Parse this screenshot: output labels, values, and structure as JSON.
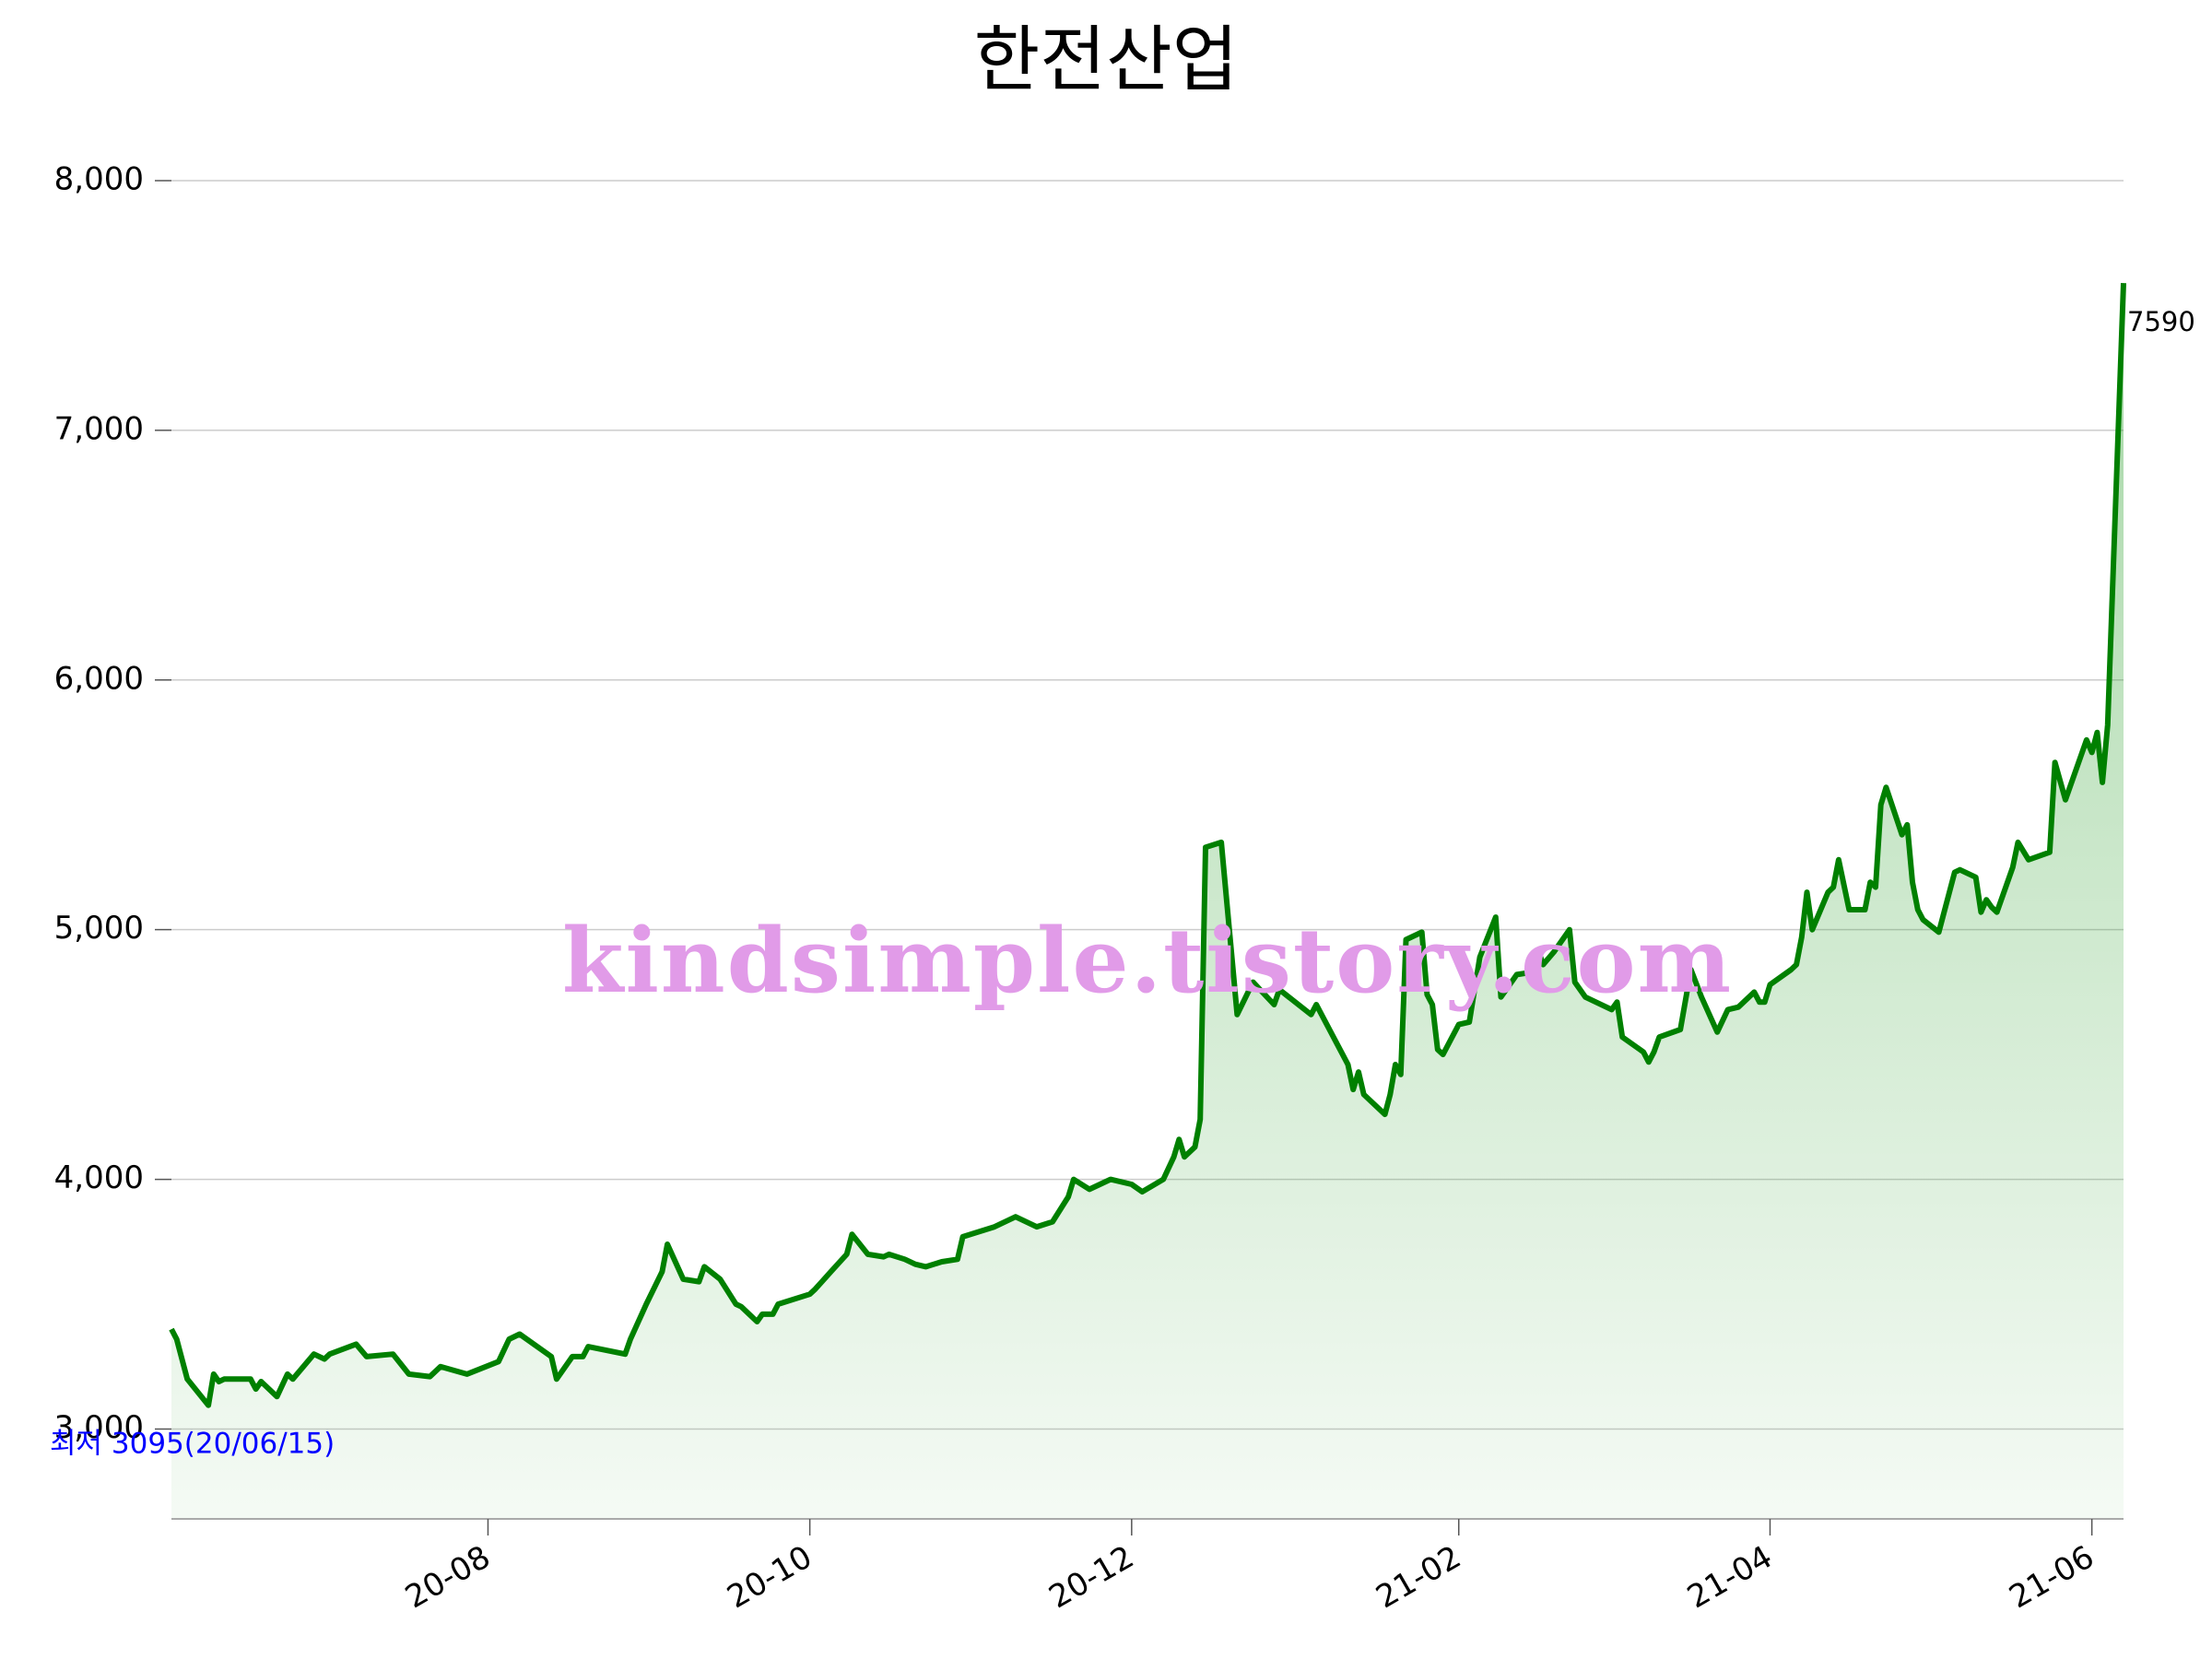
{
  "chart_data": {
    "type": "line",
    "title": "한전산업",
    "x": [
      "20-06-02",
      "20-06-03",
      "20-06-05",
      "20-06-09",
      "20-06-10",
      "20-06-11",
      "20-06-12",
      "20-06-17",
      "20-06-18",
      "20-06-19",
      "20-06-22",
      "20-06-24",
      "20-06-25",
      "20-06-29",
      "20-07-01",
      "20-07-02",
      "20-07-07",
      "20-07-09",
      "20-07-14",
      "20-07-17",
      "20-07-21",
      "20-07-23",
      "20-07-28",
      "20-08-03",
      "20-08-05",
      "20-08-07",
      "20-08-13",
      "20-08-14",
      "20-08-17",
      "20-08-19",
      "20-08-20",
      "20-08-27",
      "20-08-28",
      "20-08-31",
      "20-09-03",
      "20-09-04",
      "20-09-07",
      "20-09-10",
      "20-09-11",
      "20-09-14",
      "20-09-17",
      "20-09-18",
      "20-09-21",
      "20-09-22",
      "20-09-24",
      "20-09-25",
      "20-10-01",
      "20-10-02",
      "20-10-05",
      "20-10-08",
      "20-10-09",
      "20-10-12",
      "20-10-15",
      "20-10-16",
      "20-10-19",
      "20-10-21",
      "20-10-23",
      "20-10-26",
      "20-10-29",
      "20-10-30",
      "20-11-02",
      "20-11-05",
      "20-11-09",
      "20-11-13",
      "20-11-16",
      "20-11-19",
      "20-11-20",
      "20-11-23",
      "20-11-27",
      "20-12-01",
      "20-12-03",
      "20-12-07",
      "20-12-09",
      "20-12-10",
      "20-12-11",
      "20-12-13",
      "20-12-14",
      "20-12-15",
      "20-12-18",
      "20-12-21",
      "20-12-24",
      "20-12-28",
      "20-12-29",
      "21-01-04",
      "21-01-05",
      "21-01-07",
      "21-01-11",
      "21-01-12",
      "21-01-13",
      "21-01-14",
      "21-01-18",
      "21-01-19",
      "21-01-20",
      "21-01-21",
      "21-01-22",
      "21-01-25",
      "21-01-26",
      "21-01-27",
      "21-01-28",
      "21-01-29",
      "21-02-01",
      "21-02-03",
      "21-02-05",
      "21-02-08",
      "21-02-09",
      "21-02-12",
      "21-02-15",
      "21-02-16",
      "21-02-17",
      "21-02-19",
      "21-02-22",
      "21-02-23",
      "21-02-25",
      "21-03-02",
      "21-03-03",
      "21-03-04",
      "21-03-08",
      "21-03-09",
      "21-03-10",
      "21-03-11",
      "21-03-15",
      "21-03-17",
      "21-03-19",
      "21-03-22",
      "21-03-24",
      "21-03-26",
      "21-03-29",
      "21-03-30",
      "21-03-31",
      "21-04-01",
      "21-04-05",
      "21-04-06",
      "21-04-07",
      "21-04-08",
      "21-04-09",
      "21-04-12",
      "21-04-13",
      "21-04-14",
      "21-04-16",
      "21-04-19",
      "21-04-20",
      "21-04-21",
      "21-04-22",
      "21-04-23",
      "21-04-26",
      "21-04-27",
      "21-04-28",
      "21-04-29",
      "21-04-30",
      "21-05-03",
      "21-05-06",
      "21-05-07",
      "21-05-10",
      "21-05-11",
      "21-05-12",
      "21-05-13",
      "21-05-14",
      "21-05-17",
      "21-05-18",
      "21-05-20",
      "21-05-24",
      "21-05-25",
      "21-05-27",
      "21-05-31",
      "21-06-01",
      "21-06-02",
      "21-06-03",
      "21-06-04",
      "21-06-07"
    ],
    "values": [
      3400,
      3360,
      3200,
      3095,
      3220,
      3190,
      3200,
      3200,
      3160,
      3190,
      3130,
      3220,
      3200,
      3300,
      3280,
      3300,
      3340,
      3290,
      3300,
      3220,
      3210,
      3250,
      3220,
      3270,
      3360,
      3380,
      3290,
      3200,
      3290,
      3290,
      3330,
      3300,
      3360,
      3500,
      3630,
      3740,
      3600,
      3590,
      3650,
      3600,
      3500,
      3490,
      3430,
      3460,
      3460,
      3500,
      3540,
      3560,
      3630,
      3700,
      3780,
      3700,
      3690,
      3700,
      3680,
      3660,
      3650,
      3670,
      3680,
      3770,
      3790,
      3810,
      3850,
      3810,
      3830,
      3930,
      4000,
      3960,
      4000,
      3980,
      3950,
      4000,
      4090,
      4160,
      4090,
      4130,
      4240,
      5330,
      5350,
      4660,
      4790,
      4700,
      4760,
      4660,
      4700,
      4620,
      4460,
      4360,
      4430,
      4340,
      4260,
      4340,
      4460,
      4420,
      4960,
      4990,
      4740,
      4700,
      4520,
      4500,
      4620,
      4630,
      4890,
      5050,
      4730,
      4820,
      4830,
      4920,
      4860,
      4910,
      5000,
      4790,
      4730,
      4680,
      4710,
      4570,
      4510,
      4470,
      4510,
      4570,
      4600,
      4840,
      4730,
      4590,
      4680,
      4690,
      4750,
      4710,
      4710,
      4780,
      4840,
      4860,
      4970,
      5150,
      5000,
      5150,
      5170,
      5280,
      5080,
      5080,
      5190,
      5170,
      5500,
      5570,
      5380,
      5420,
      5190,
      5080,
      5040,
      4990,
      5230,
      5240,
      5210,
      5070,
      5120,
      5090,
      5070,
      5250,
      5350,
      5280,
      5310,
      5670,
      5520,
      5760,
      5710,
      5790,
      5590,
      5820,
      7590
    ],
    "color": "#008000",
    "xlim": [
      "20-06-02",
      "21-06-07"
    ],
    "xticks": [
      {
        "value": "20-08-01",
        "label": "20-08"
      },
      {
        "value": "20-10-01",
        "label": "20-10"
      },
      {
        "value": "20-12-01",
        "label": "20-12"
      },
      {
        "value": "21-02-01",
        "label": "21-02"
      },
      {
        "value": "21-04-01",
        "label": "21-04"
      },
      {
        "value": "21-06-01",
        "label": "21-06"
      }
    ],
    "ylim": [
      2640,
      8000
    ],
    "yticks": [
      {
        "value": 3000,
        "label": "3,000"
      },
      {
        "value": 4000,
        "label": "4,000"
      },
      {
        "value": 5000,
        "label": "5,000"
      },
      {
        "value": 6000,
        "label": "6,000"
      },
      {
        "value": 7000,
        "label": "7,000"
      },
      {
        "value": 8000,
        "label": "8,000"
      }
    ],
    "grid": true,
    "annotations": [
      {
        "text": "최저 3095(20/06/15)",
        "color": "#0000ff"
      }
    ],
    "watermark": "kindsimple.tistory.com"
  }
}
